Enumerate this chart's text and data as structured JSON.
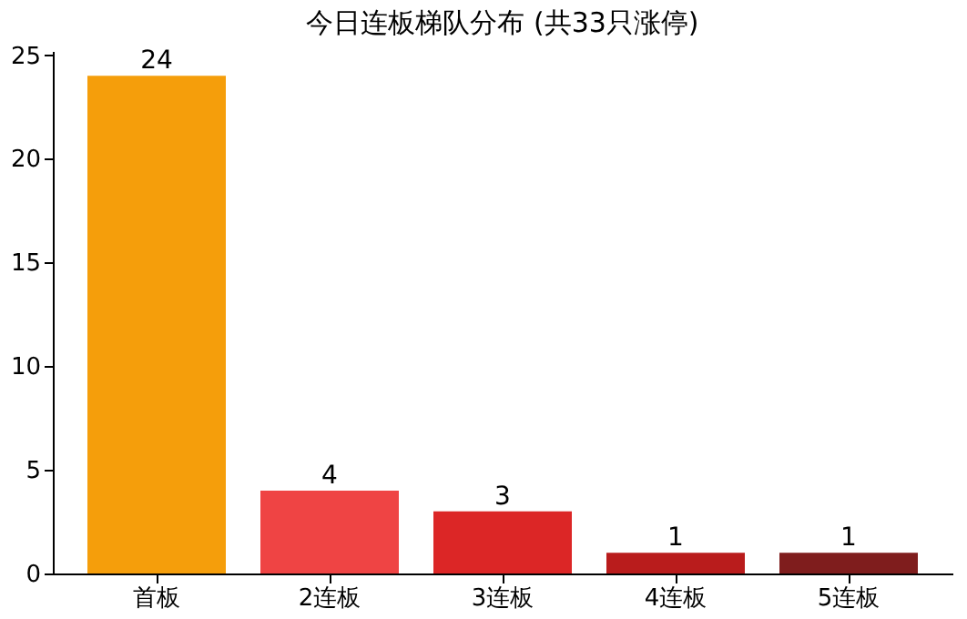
{
  "chart_data": {
    "type": "bar",
    "title": "今日连板梯队分布 (共33只涨停)",
    "categories": [
      "首板",
      "2连板",
      "3连板",
      "4连板",
      "5连板"
    ],
    "values": [
      24,
      4,
      3,
      1,
      1
    ],
    "colors": [
      "#f59e0b",
      "#ef4444",
      "#dc2626",
      "#b91c1c",
      "#7f1d1d"
    ],
    "ylim": [
      0,
      25.2
    ],
    "yticks": [
      0,
      5,
      10,
      15,
      20,
      25
    ],
    "grid": false,
    "data_labels": true
  }
}
